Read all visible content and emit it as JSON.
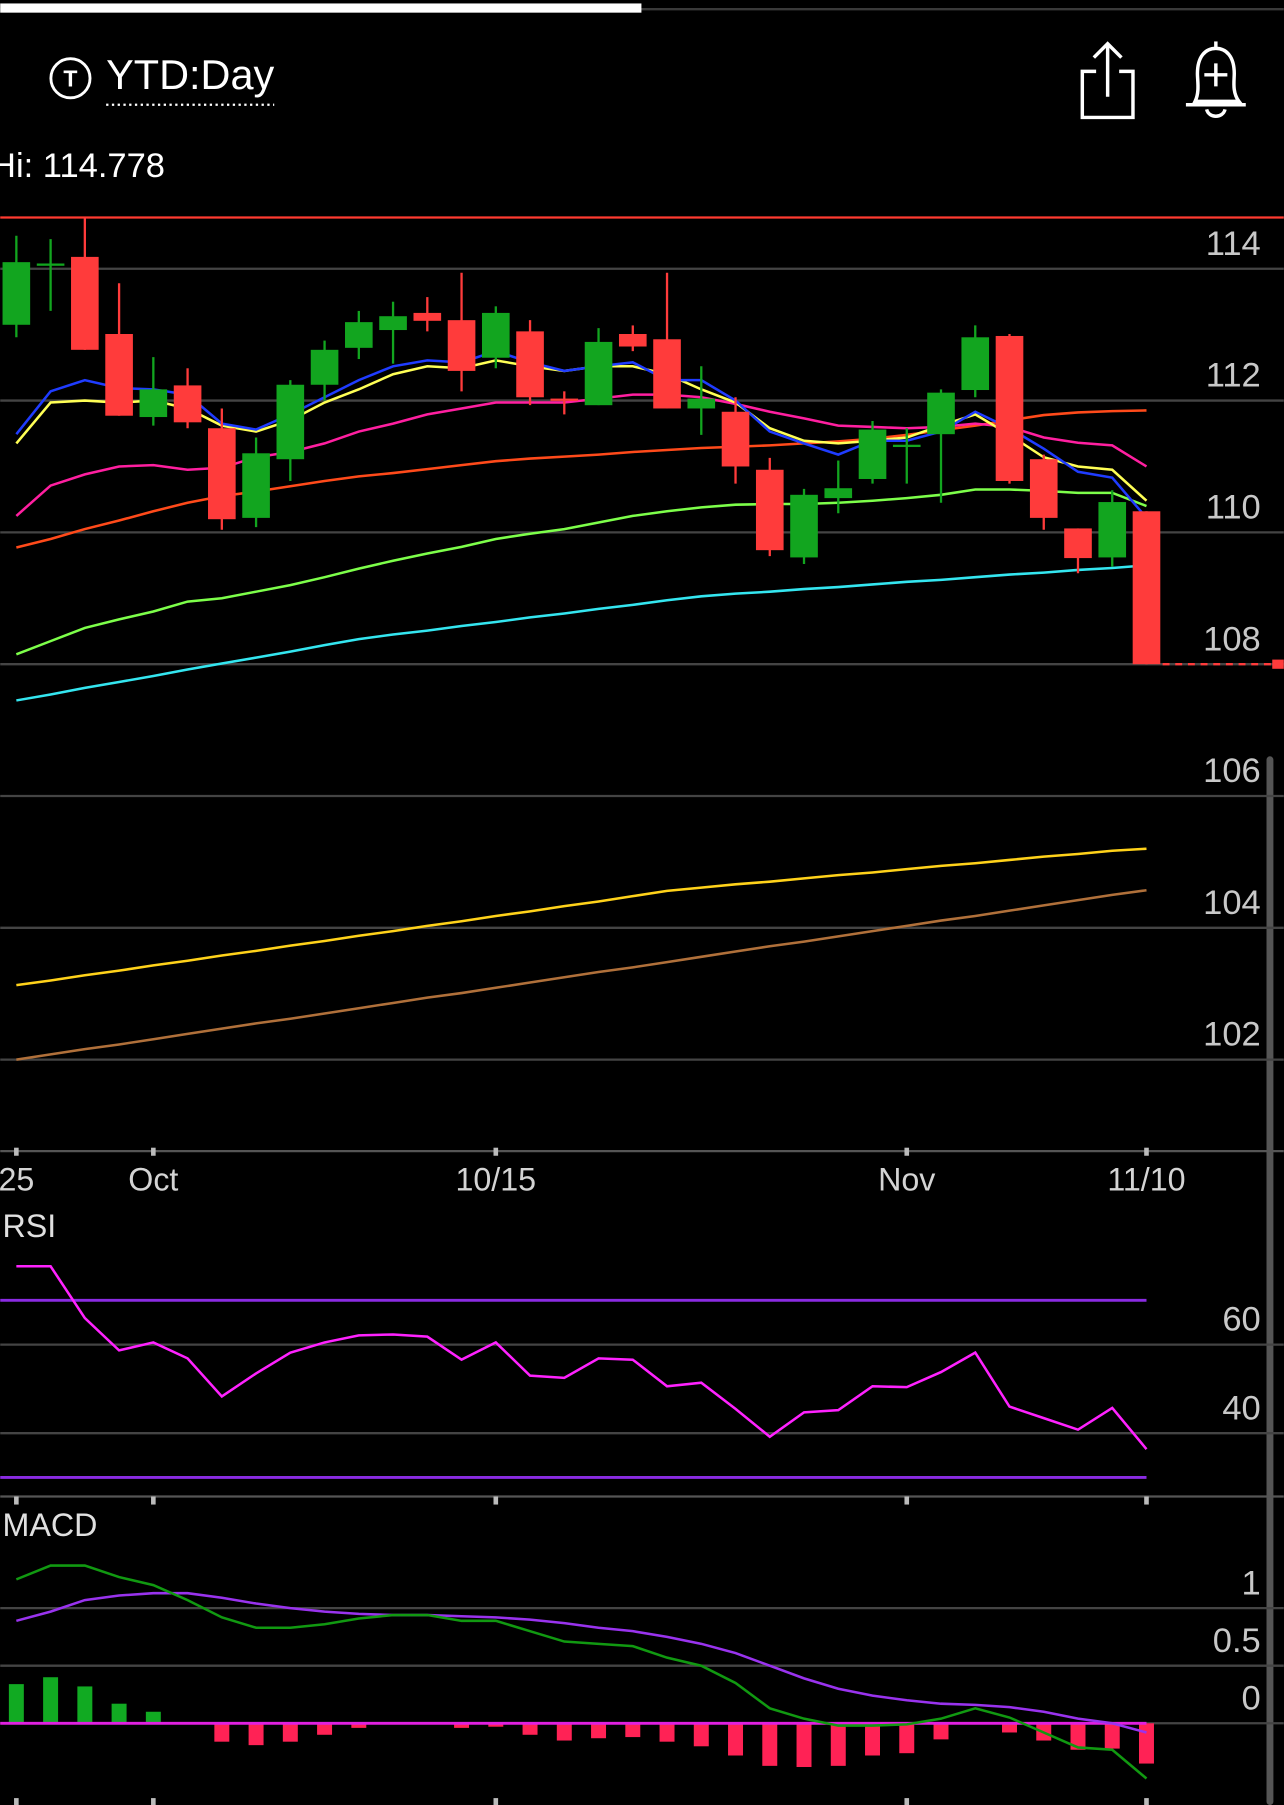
{
  "toolbar": {
    "icon_letter": "T",
    "range": "YTD:Day"
  },
  "chart_data": [
    {
      "type": "candlestick",
      "hi": {
        "value": 114.778,
        "label": "Hi: 114.778"
      },
      "hi_color": "#ff3b30",
      "categories": [
        "25",
        null,
        null,
        null,
        "Oct",
        null,
        null,
        null,
        null,
        null,
        null,
        null,
        null,
        null,
        "10/15",
        null,
        null,
        null,
        null,
        null,
        null,
        null,
        null,
        null,
        null,
        null,
        "Nov",
        null,
        null,
        null,
        null,
        null,
        null,
        "11/10"
      ],
      "open": [
        113.15,
        114.05,
        114.18,
        113.01,
        111.75,
        112.23,
        111.58,
        110.22,
        111.11,
        112.24,
        112.8,
        113.07,
        113.33,
        113.22,
        112.65,
        113.05,
        112.03,
        111.93,
        113.01,
        112.93,
        111.88,
        111.83,
        110.95,
        109.62,
        110.52,
        110.81,
        111.3,
        111.49,
        112.16,
        112.98,
        111.11,
        110.06,
        109.62,
        110.32
      ],
      "high": [
        114.5,
        114.45,
        114.78,
        113.78,
        112.66,
        112.49,
        111.88,
        111.44,
        112.31,
        112.91,
        113.36,
        113.5,
        113.57,
        113.94,
        113.43,
        113.22,
        112.14,
        113.1,
        113.14,
        113.94,
        112.52,
        112.05,
        111.13,
        110.66,
        111.09,
        111.69,
        111.58,
        112.17,
        113.14,
        113.01,
        111.18,
        110.06,
        110.64,
        110.32
      ],
      "low": [
        112.96,
        113.36,
        112.77,
        111.77,
        111.62,
        111.58,
        110.04,
        110.08,
        110.78,
        112.0,
        112.63,
        112.56,
        113.05,
        112.14,
        112.49,
        111.93,
        111.79,
        111.93,
        112.75,
        111.88,
        111.48,
        110.74,
        109.64,
        109.52,
        110.29,
        110.74,
        110.74,
        110.45,
        112.05,
        110.74,
        110.04,
        109.38,
        109.48,
        108.0
      ],
      "close": [
        114.1,
        114.08,
        112.77,
        111.77,
        112.17,
        111.67,
        110.2,
        111.2,
        112.24,
        112.77,
        113.19,
        113.28,
        113.21,
        112.45,
        113.33,
        112.05,
        112.0,
        112.89,
        112.82,
        111.88,
        112.03,
        111.0,
        109.73,
        110.57,
        110.67,
        111.56,
        111.33,
        112.12,
        112.96,
        110.78,
        110.22,
        109.61,
        110.46,
        108.0
      ],
      "up_color": "#12a51f",
      "down_color": "#ff3b3b",
      "lines": [
        {
          "color": "#b0703a",
          "values": [
            102.0,
            102.08,
            102.16,
            102.23,
            102.31,
            102.39,
            102.47,
            102.55,
            102.62,
            102.7,
            102.78,
            102.86,
            102.94,
            103.01,
            103.09,
            103.17,
            103.25,
            103.33,
            103.4,
            103.48,
            103.56,
            103.64,
            103.72,
            103.79,
            103.87,
            103.95,
            104.03,
            104.11,
            104.18,
            104.26,
            104.34,
            104.42,
            104.5,
            104.57
          ]
        },
        {
          "color": "#ffd21a",
          "values": [
            103.13,
            103.2,
            103.28,
            103.35,
            103.43,
            103.5,
            103.58,
            103.65,
            103.73,
            103.8,
            103.88,
            103.95,
            104.03,
            104.1,
            104.18,
            104.25,
            104.33,
            104.4,
            104.48,
            104.56,
            104.61,
            104.66,
            104.7,
            104.75,
            104.8,
            104.84,
            104.89,
            104.94,
            104.98,
            105.03,
            105.08,
            105.12,
            105.17,
            105.2
          ]
        },
        {
          "color": "#34e6f0",
          "values": [
            107.45,
            107.54,
            107.64,
            107.73,
            107.82,
            107.92,
            108.01,
            108.1,
            108.19,
            108.29,
            108.38,
            108.45,
            108.51,
            108.58,
            108.64,
            108.71,
            108.77,
            108.84,
            108.9,
            108.97,
            109.03,
            109.07,
            109.1,
            109.14,
            109.17,
            109.21,
            109.25,
            109.28,
            109.32,
            109.36,
            109.39,
            109.43,
            109.46,
            109.5
          ]
        },
        {
          "color": "#7dff4a",
          "values": [
            108.15,
            108.35,
            108.55,
            108.68,
            108.8,
            108.95,
            109.0,
            109.1,
            109.2,
            109.32,
            109.45,
            109.57,
            109.68,
            109.78,
            109.9,
            109.98,
            110.05,
            110.15,
            110.25,
            110.32,
            110.38,
            110.42,
            110.43,
            110.43,
            110.45,
            110.48,
            110.52,
            110.57,
            110.65,
            110.65,
            110.63,
            110.6,
            110.6,
            110.4
          ]
        },
        {
          "color": "#ff4a1a",
          "values": [
            109.77,
            109.9,
            110.05,
            110.18,
            110.32,
            110.45,
            110.55,
            110.62,
            110.7,
            110.78,
            110.85,
            110.9,
            110.96,
            111.02,
            111.08,
            111.12,
            111.15,
            111.18,
            111.22,
            111.25,
            111.28,
            111.3,
            111.32,
            111.35,
            111.38,
            111.42,
            111.48,
            111.55,
            111.62,
            111.7,
            111.78,
            111.82,
            111.84,
            111.85
          ]
        },
        {
          "color": "#ff1fa0",
          "values": [
            110.25,
            110.71,
            110.88,
            111.0,
            111.02,
            110.95,
            110.98,
            111.14,
            111.22,
            111.35,
            111.53,
            111.65,
            111.79,
            111.88,
            111.97,
            111.97,
            111.97,
            112.03,
            112.09,
            112.09,
            112.05,
            111.95,
            111.83,
            111.73,
            111.62,
            111.6,
            111.58,
            111.6,
            111.65,
            111.6,
            111.44,
            111.36,
            111.32,
            111.0
          ]
        },
        {
          "color": "#ffff55",
          "values": [
            111.35,
            111.97,
            112.0,
            111.97,
            112.0,
            111.88,
            111.62,
            111.53,
            111.7,
            111.97,
            112.17,
            112.4,
            112.52,
            112.49,
            112.61,
            112.52,
            112.45,
            112.52,
            112.52,
            112.4,
            112.17,
            111.97,
            111.58,
            111.39,
            111.35,
            111.39,
            111.44,
            111.62,
            111.79,
            111.48,
            111.14,
            111.0,
            110.95,
            110.48
          ]
        },
        {
          "color": "#1f3cff",
          "values": [
            111.49,
            112.14,
            112.31,
            112.19,
            112.17,
            112.09,
            111.65,
            111.56,
            111.79,
            112.05,
            112.31,
            112.52,
            112.61,
            112.58,
            112.75,
            112.58,
            112.45,
            112.52,
            112.58,
            112.31,
            112.31,
            112.0,
            111.53,
            111.35,
            111.18,
            111.39,
            111.39,
            111.53,
            111.83,
            111.58,
            111.27,
            110.92,
            110.83,
            110.22
          ]
        }
      ],
      "ylim": [
        100.6,
        114.85
      ],
      "yticks": [
        102,
        104,
        106,
        108,
        110,
        112,
        114
      ],
      "grid": true
    },
    {
      "type": "line",
      "title": "RSI",
      "series": [
        {
          "color": "#ff22ff",
          "values": [
            77.7,
            77.7,
            66.0,
            58.7,
            60.5,
            56.9,
            48.3,
            53.5,
            58.2,
            60.5,
            62.1,
            62.3,
            61.8,
            56.6,
            60.5,
            53.0,
            52.5,
            56.9,
            56.6,
            50.6,
            51.4,
            45.5,
            39.2,
            44.7,
            45.2,
            50.6,
            50.4,
            53.8,
            58.2,
            46.0,
            43.4,
            40.8,
            45.7,
            36.4
          ]
        }
      ],
      "levels": [
        30,
        70
      ],
      "level_color": "#8a2be2",
      "ylim": [
        25.6,
        81.6
      ],
      "yticks": [
        40,
        60
      ],
      "grid": true
    },
    {
      "type": "macd",
      "title": "MACD",
      "series": [
        {
          "color": "#9933ee",
          "values": [
            0.89,
            0.97,
            1.07,
            1.11,
            1.13,
            1.13,
            1.09,
            1.04,
            1.0,
            0.97,
            0.95,
            0.94,
            0.94,
            0.93,
            0.92,
            0.9,
            0.87,
            0.83,
            0.8,
            0.75,
            0.69,
            0.61,
            0.5,
            0.39,
            0.3,
            0.24,
            0.2,
            0.17,
            0.16,
            0.14,
            0.1,
            0.04,
            0.0,
            -0.08
          ]
        },
        {
          "color": "#119911",
          "values": [
            1.25,
            1.37,
            1.37,
            1.27,
            1.2,
            1.07,
            0.92,
            0.83,
            0.83,
            0.86,
            0.91,
            0.94,
            0.94,
            0.89,
            0.89,
            0.8,
            0.71,
            0.69,
            0.67,
            0.57,
            0.5,
            0.35,
            0.13,
            0.04,
            -0.02,
            -0.02,
            -0.01,
            0.04,
            0.13,
            0.05,
            -0.08,
            -0.21,
            -0.23,
            -0.48
          ]
        }
      ],
      "histogram": [
        0.34,
        0.4,
        0.32,
        0.17,
        0.1,
        0,
        -0.16,
        -0.19,
        -0.16,
        -0.1,
        -0.04,
        0,
        0,
        -0.04,
        -0.03,
        -0.1,
        -0.15,
        -0.13,
        -0.12,
        -0.16,
        -0.2,
        -0.28,
        -0.37,
        -0.38,
        -0.37,
        -0.28,
        -0.26,
        -0.14,
        0,
        -0.08,
        -0.15,
        -0.23,
        -0.22,
        -0.35
      ],
      "up_color": "#11aa22",
      "down_color": "#ff2255",
      "zero_color": "#e020e0",
      "ylim": [
        -0.71,
        1.87
      ],
      "yticks": [
        0,
        0.5,
        1
      ],
      "grid": true
    }
  ]
}
